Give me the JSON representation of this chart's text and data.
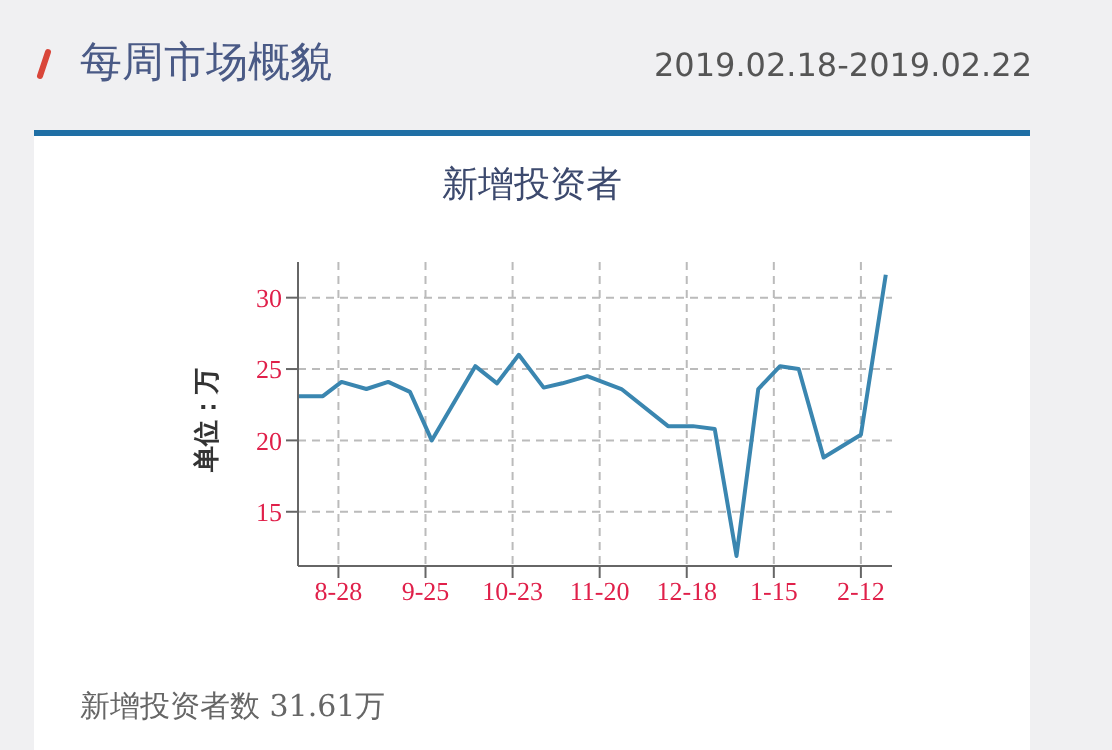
{
  "chart_data": {
    "type": "line",
    "title": "新增投资者",
    "ylabel": "单位：万",
    "annotations": [
      "每周市场概貌",
      "2019.02.18-2019.02.22",
      "新增投资者数 31.61万"
    ],
    "x": [
      "2018-08-15",
      "2018-08-23",
      "2018-08-29",
      "2018-09-06",
      "2018-09-13",
      "2018-09-20",
      "2018-09-27",
      "2018-10-11",
      "2018-10-18",
      "2018-10-25",
      "2018-11-02",
      "2018-11-08",
      "2018-11-16",
      "2018-11-27",
      "2018-12-12",
      "2018-12-20",
      "2018-12-27",
      "2019-01-03",
      "2019-01-10",
      "2019-01-17",
      "2019-01-23",
      "2019-01-31",
      "2019-02-12",
      "2019-02-20"
    ],
    "series": [
      {
        "color": "#3a86b0",
        "values": [
          23.1,
          23.1,
          24.1,
          23.6,
          24.1,
          23.4,
          20.0,
          25.2,
          24.0,
          26.0,
          23.7,
          24.0,
          24.5,
          23.6,
          21.0,
          21.0,
          20.8,
          11.9,
          23.6,
          25.2,
          25.0,
          18.8,
          20.4,
          31.61
        ]
      }
    ],
    "xlim": [
      "2018-08-15",
      "2019-02-22"
    ],
    "xticks": [
      {
        "value": "2018-08-28",
        "label": "8-28"
      },
      {
        "value": "2018-09-25",
        "label": "9-25"
      },
      {
        "value": "2018-10-23",
        "label": "10-23"
      },
      {
        "value": "2018-11-20",
        "label": "11-20"
      },
      {
        "value": "2018-12-18",
        "label": "12-18"
      },
      {
        "value": "2019-01-15",
        "label": "1-15"
      },
      {
        "value": "2019-02-12",
        "label": "2-12"
      }
    ],
    "ylim": [
      11.2,
      32.5
    ],
    "yticks": [
      15,
      20,
      25,
      30
    ],
    "grid": true,
    "marker": "none",
    "line_style": "solid"
  }
}
